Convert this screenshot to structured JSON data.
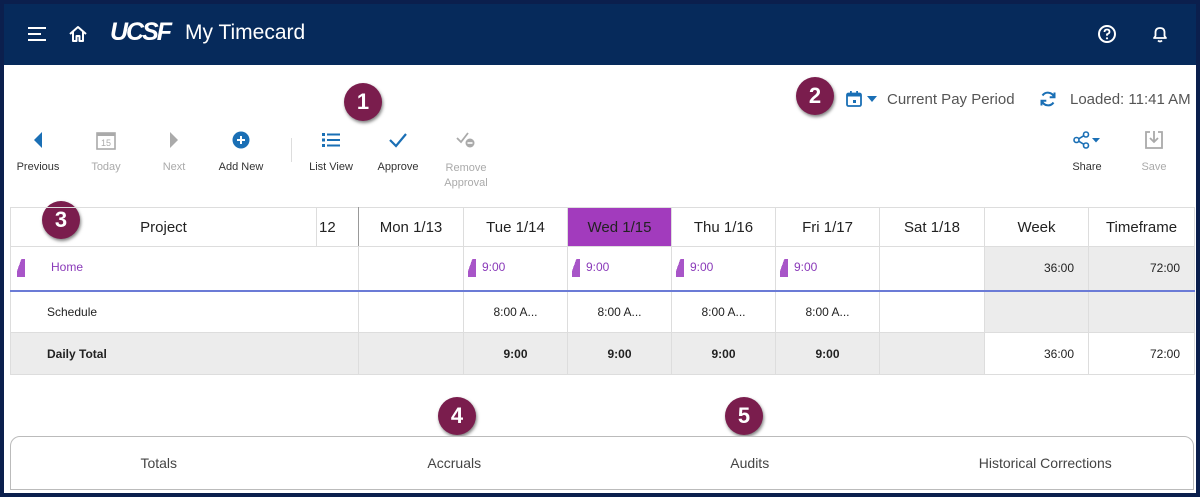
{
  "header": {
    "logo": "UCSF",
    "title": "My Timecard",
    "icons": [
      "menu-icon",
      "home-icon",
      "help-icon",
      "bell-icon"
    ]
  },
  "callouts": [
    "1",
    "2",
    "3",
    "4",
    "5"
  ],
  "period": {
    "label": "Current Pay Period",
    "loaded": "Loaded: 11:41 AM"
  },
  "toolbar": {
    "previous": "Previous",
    "today": "Today",
    "today_day": "15",
    "next": "Next",
    "add_new": "Add New",
    "list_view": "List View",
    "approve": "Approve",
    "remove_approval": "Remove Approval",
    "share": "Share",
    "save": "Save"
  },
  "grid": {
    "project_header": "Project",
    "partial_col": "12",
    "days": [
      "Mon 1/13",
      "Tue 1/14",
      "Wed 1/15",
      "Thu 1/16",
      "Fri 1/17",
      "Sat 1/18"
    ],
    "week_header": "Week",
    "timeframe_header": "Timeframe",
    "rows": [
      {
        "project": "Home",
        "values": [
          "",
          "9:00",
          "9:00",
          "9:00",
          "9:00",
          ""
        ],
        "week": "36:00",
        "timeframe": "72:00"
      },
      {
        "project": "Schedule",
        "values": [
          "",
          "8:00 A...",
          "8:00 A...",
          "8:00 A...",
          "8:00 A...",
          ""
        ],
        "week": "",
        "timeframe": ""
      },
      {
        "project": "Daily Total",
        "values": [
          "",
          "9:00",
          "9:00",
          "9:00",
          "9:00",
          ""
        ],
        "week": "36:00",
        "timeframe": "72:00"
      }
    ]
  },
  "tabs": [
    "Totals",
    "Accruals",
    "Audits",
    "Historical Corrections"
  ],
  "colors": {
    "header_bg": "#062a5b",
    "accent": "#a23bbd",
    "callout": "#7a1d4d",
    "link": "#8a3ab9"
  }
}
